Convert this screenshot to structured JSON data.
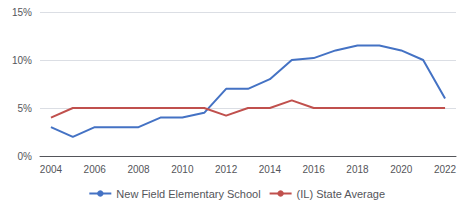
{
  "chart_data": {
    "type": "line",
    "x": [
      2004,
      2005,
      2006,
      2007,
      2008,
      2009,
      2010,
      2011,
      2012,
      2013,
      2014,
      2015,
      2016,
      2017,
      2018,
      2019,
      2020,
      2021,
      2022
    ],
    "series": [
      {
        "name": "New Field Elementary School",
        "color": "#4472C4",
        "values": [
          3.0,
          2.0,
          3.0,
          3.0,
          3.0,
          4.0,
          4.0,
          4.5,
          7.0,
          7.0,
          8.0,
          10.0,
          10.2,
          11.0,
          11.5,
          11.5,
          11.0,
          10.0,
          6.0
        ]
      },
      {
        "name": "(IL) State Average",
        "color": "#C0504D",
        "values": [
          4.0,
          5.0,
          5.0,
          5.0,
          5.0,
          5.0,
          5.0,
          5.0,
          4.2,
          5.0,
          5.0,
          5.8,
          5.0,
          5.0,
          5.0,
          5.0,
          5.0,
          5.0,
          5.0
        ]
      }
    ],
    "xlim": [
      2003.5,
      2022.5
    ],
    "xticks": [
      2004,
      2006,
      2008,
      2010,
      2012,
      2014,
      2016,
      2018,
      2020,
      2022
    ],
    "ylim": [
      0,
      15
    ],
    "yticks": [
      {
        "value": 0,
        "label": "0%"
      },
      {
        "value": 5,
        "label": "5%"
      },
      {
        "value": 10,
        "label": "10%"
      },
      {
        "value": 15,
        "label": "15%"
      }
    ],
    "grid": true,
    "legend": "bottom"
  }
}
